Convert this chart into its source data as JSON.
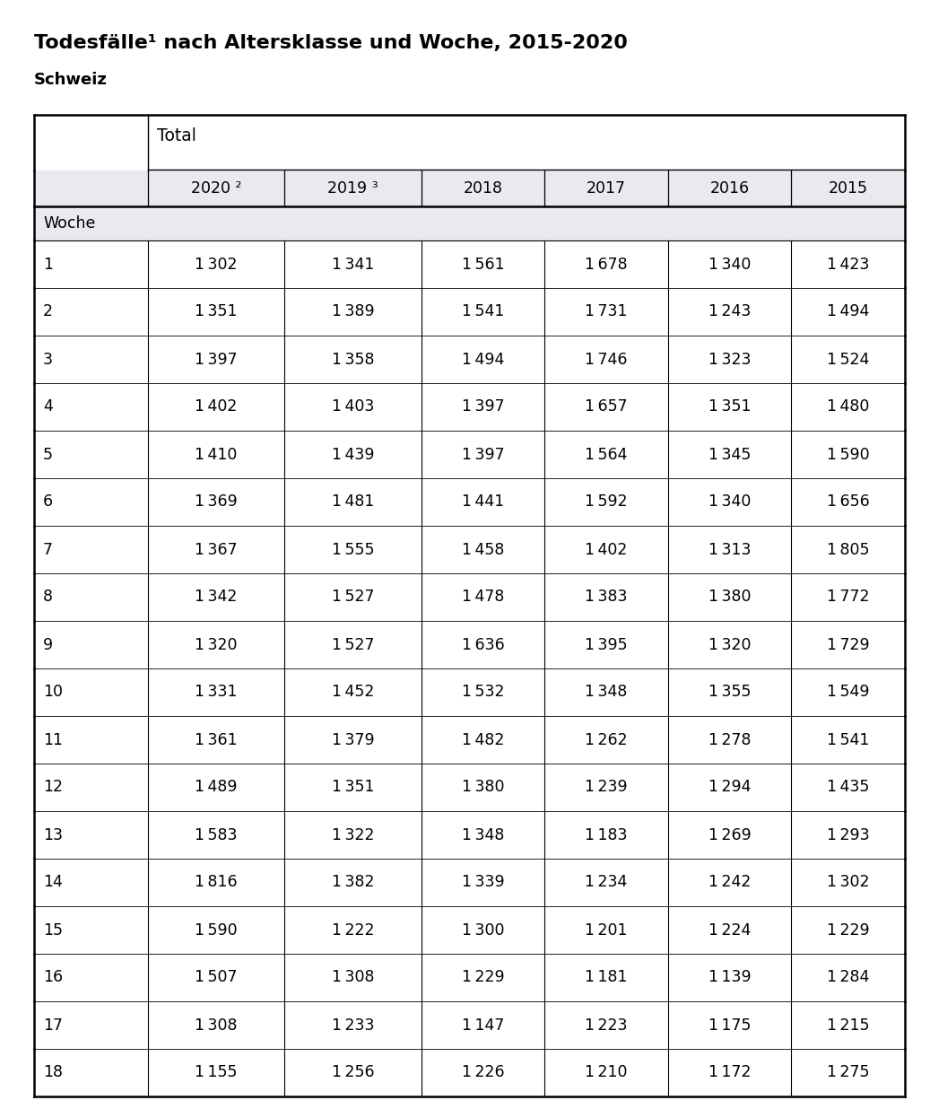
{
  "title_line1": "Todesfälle¹ nach Altersklasse und Woche, 2015-2020",
  "subtitle": "Schweiz",
  "group_header": "Total",
  "col_headers": [
    "2020 ²",
    "2019 ³",
    "2018",
    "2017",
    "2016",
    "2015"
  ],
  "row_label": "Woche",
  "weeks": [
    1,
    2,
    3,
    4,
    5,
    6,
    7,
    8,
    9,
    10,
    11,
    12,
    13,
    14,
    15,
    16,
    17,
    18
  ],
  "data": [
    [
      1302,
      1341,
      1561,
      1678,
      1340,
      1423
    ],
    [
      1351,
      1389,
      1541,
      1731,
      1243,
      1494
    ],
    [
      1397,
      1358,
      1494,
      1746,
      1323,
      1524
    ],
    [
      1402,
      1403,
      1397,
      1657,
      1351,
      1480
    ],
    [
      1410,
      1439,
      1397,
      1564,
      1345,
      1590
    ],
    [
      1369,
      1481,
      1441,
      1592,
      1340,
      1656
    ],
    [
      1367,
      1555,
      1458,
      1402,
      1313,
      1805
    ],
    [
      1342,
      1527,
      1478,
      1383,
      1380,
      1772
    ],
    [
      1320,
      1527,
      1636,
      1395,
      1320,
      1729
    ],
    [
      1331,
      1452,
      1532,
      1348,
      1355,
      1549
    ],
    [
      1361,
      1379,
      1482,
      1262,
      1278,
      1541
    ],
    [
      1489,
      1351,
      1380,
      1239,
      1294,
      1435
    ],
    [
      1583,
      1322,
      1348,
      1183,
      1269,
      1293
    ],
    [
      1816,
      1382,
      1339,
      1234,
      1242,
      1302
    ],
    [
      1590,
      1222,
      1300,
      1201,
      1224,
      1229
    ],
    [
      1507,
      1308,
      1229,
      1181,
      1139,
      1284
    ],
    [
      1308,
      1233,
      1147,
      1223,
      1175,
      1215
    ],
    [
      1155,
      1256,
      1226,
      1210,
      1172,
      1275
    ]
  ],
  "bg_color": "#ffffff",
  "header_bg": "#e8eaf0",
  "woche_bg": "#e8eaf0",
  "text_color": "#000000",
  "font_size_title": 16,
  "font_size_subtitle": 13,
  "font_size_table": 12.5
}
